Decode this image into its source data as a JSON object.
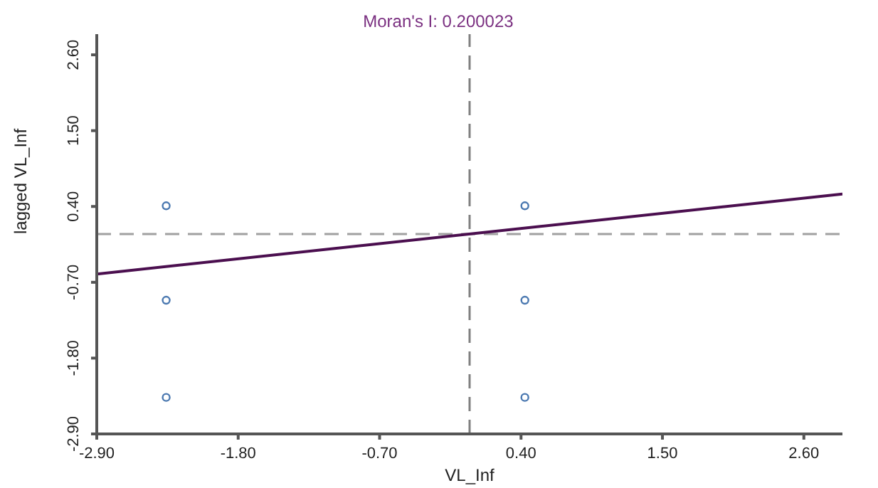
{
  "chart_data": {
    "type": "scatter",
    "title": "Moran's I: 0.200023",
    "xlabel": "VL_Inf",
    "ylabel": "lagged VL_Inf",
    "xlim": [
      -2.9,
      2.9
    ],
    "ylim": [
      -2.9,
      2.9
    ],
    "xticks": [
      {
        "value": -2.9,
        "label": "-2.90"
      },
      {
        "value": -1.8,
        "label": "-1.80"
      },
      {
        "value": -0.7,
        "label": "-0.70"
      },
      {
        "value": 0.4,
        "label": "0.40"
      },
      {
        "value": 1.5,
        "label": "1.50"
      },
      {
        "value": 2.6,
        "label": "2.60"
      }
    ],
    "yticks": [
      {
        "value": -2.9,
        "label": "-2.90"
      },
      {
        "value": -1.8,
        "label": "-1.80"
      },
      {
        "value": -0.7,
        "label": "-0.70"
      },
      {
        "value": 0.4,
        "label": "0.40"
      },
      {
        "value": 1.5,
        "label": "1.50"
      },
      {
        "value": 2.6,
        "label": "2.60"
      }
    ],
    "series": [
      {
        "color": "#4a78b0",
        "marker": "circle",
        "x": [
          -2.36,
          -2.36,
          -2.36,
          0.43,
          0.43,
          0.43
        ],
        "values": [
          0.41,
          -0.96,
          -2.37,
          0.41,
          -0.96,
          -2.37
        ]
      },
      {
        "type": "line",
        "color": "#4b0f4f",
        "x": [
          -2.9,
          2.9
        ],
        "values": [
          -0.58,
          0.58
        ]
      }
    ],
    "ref_lines": [
      {
        "axis": "x",
        "value": 0,
        "color": "#808080",
        "line_style": "dashed"
      },
      {
        "axis": "y",
        "value": 0,
        "color": "#a0a0a0",
        "line_style": "dashed"
      }
    ],
    "grid": false,
    "legend": false
  }
}
